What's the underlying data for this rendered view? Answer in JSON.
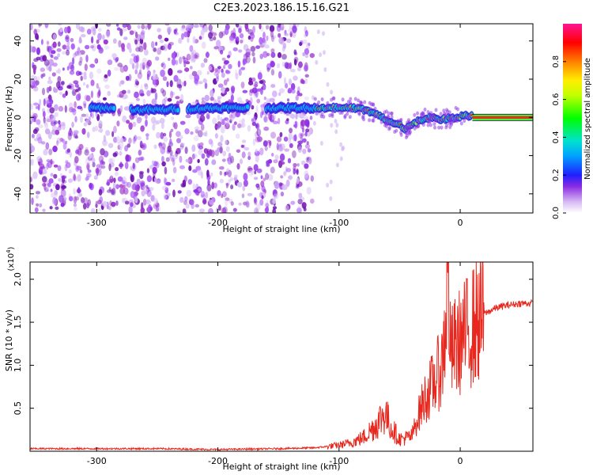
{
  "title": "C2E3.2023.186.15.16.G21",
  "colors": {
    "cloud": "#8a2be2",
    "snr_line": "#e8281e",
    "band": "#00ff00",
    "axis": "#000000"
  },
  "chart_data": [
    {
      "type": "heatmap",
      "xlabel": "Height of straight line (km)",
      "ylabel": "Frequency (Hz)",
      "xlim": [
        -355,
        60
      ],
      "ylim": [
        -50,
        49
      ],
      "xticks": [
        -300,
        -200,
        -100,
        0
      ],
      "xtick_labels": [
        "-300",
        "-200",
        "-100",
        "0"
      ],
      "yticks": [
        -40,
        -20,
        0,
        20,
        40
      ],
      "ytick_labels": [
        "-40",
        "-20",
        "0",
        "20",
        "40"
      ],
      "colorbar": {
        "label": "Normalized spectral amplitude",
        "range": [
          0,
          1
        ],
        "ticks": [
          0.0,
          0.2,
          0.4,
          0.6,
          0.8
        ],
        "tick_labels": [
          "0.0",
          "0.2",
          "0.4",
          "0.6",
          "0.8"
        ]
      },
      "noise_extent_km": [
        -355,
        -122
      ],
      "main_band": {
        "height_km": [
          -305,
          -290,
          -275,
          -250,
          -200,
          -160,
          -130,
          -110,
          -100,
          -90,
          -80,
          -70,
          -60,
          -50,
          -45,
          -35,
          -25,
          -15,
          -5,
          5,
          15,
          60
        ],
        "frequency_hz": [
          5,
          5,
          4,
          4,
          5,
          5,
          5,
          5,
          5,
          5,
          4,
          2,
          -2,
          -4,
          -6,
          -2,
          0,
          -1,
          0,
          1,
          0,
          0
        ]
      }
    },
    {
      "type": "line",
      "xlabel": "Height of straight line (km)",
      "ylabel": "SNR (10 * v/v)",
      "y_multiplier": "(x10^4)",
      "xlim": [
        -355,
        60
      ],
      "ylim": [
        0,
        2.2
      ],
      "xticks": [
        -300,
        -200,
        -100,
        0
      ],
      "xtick_labels": [
        "-300",
        "-200",
        "-100",
        "0"
      ],
      "yticks": [
        0.5,
        1.0,
        1.5,
        2.0
      ],
      "ytick_labels": [
        "0.5",
        "1.0",
        "1.5",
        "2.0"
      ],
      "series": [
        {
          "x": [
            -355,
            -300,
            -250,
            -200,
            -150,
            -120,
            -100,
            -90,
            -80,
            -70,
            -62,
            -58,
            -50,
            -40,
            -35,
            -30,
            -25,
            -20,
            -15,
            -12,
            -10,
            -8,
            -5,
            0,
            10,
            20,
            30,
            40,
            50,
            60
          ],
          "y": [
            0.03,
            0.03,
            0.03,
            0.02,
            0.03,
            0.04,
            0.07,
            0.1,
            0.16,
            0.3,
            0.45,
            0.3,
            0.14,
            0.17,
            0.4,
            0.6,
            0.72,
            0.85,
            1.0,
            1.5,
            2.2,
            1.1,
            1.2,
            1.28,
            1.45,
            1.6,
            1.67,
            1.7,
            1.72,
            1.72
          ]
        }
      ]
    }
  ]
}
